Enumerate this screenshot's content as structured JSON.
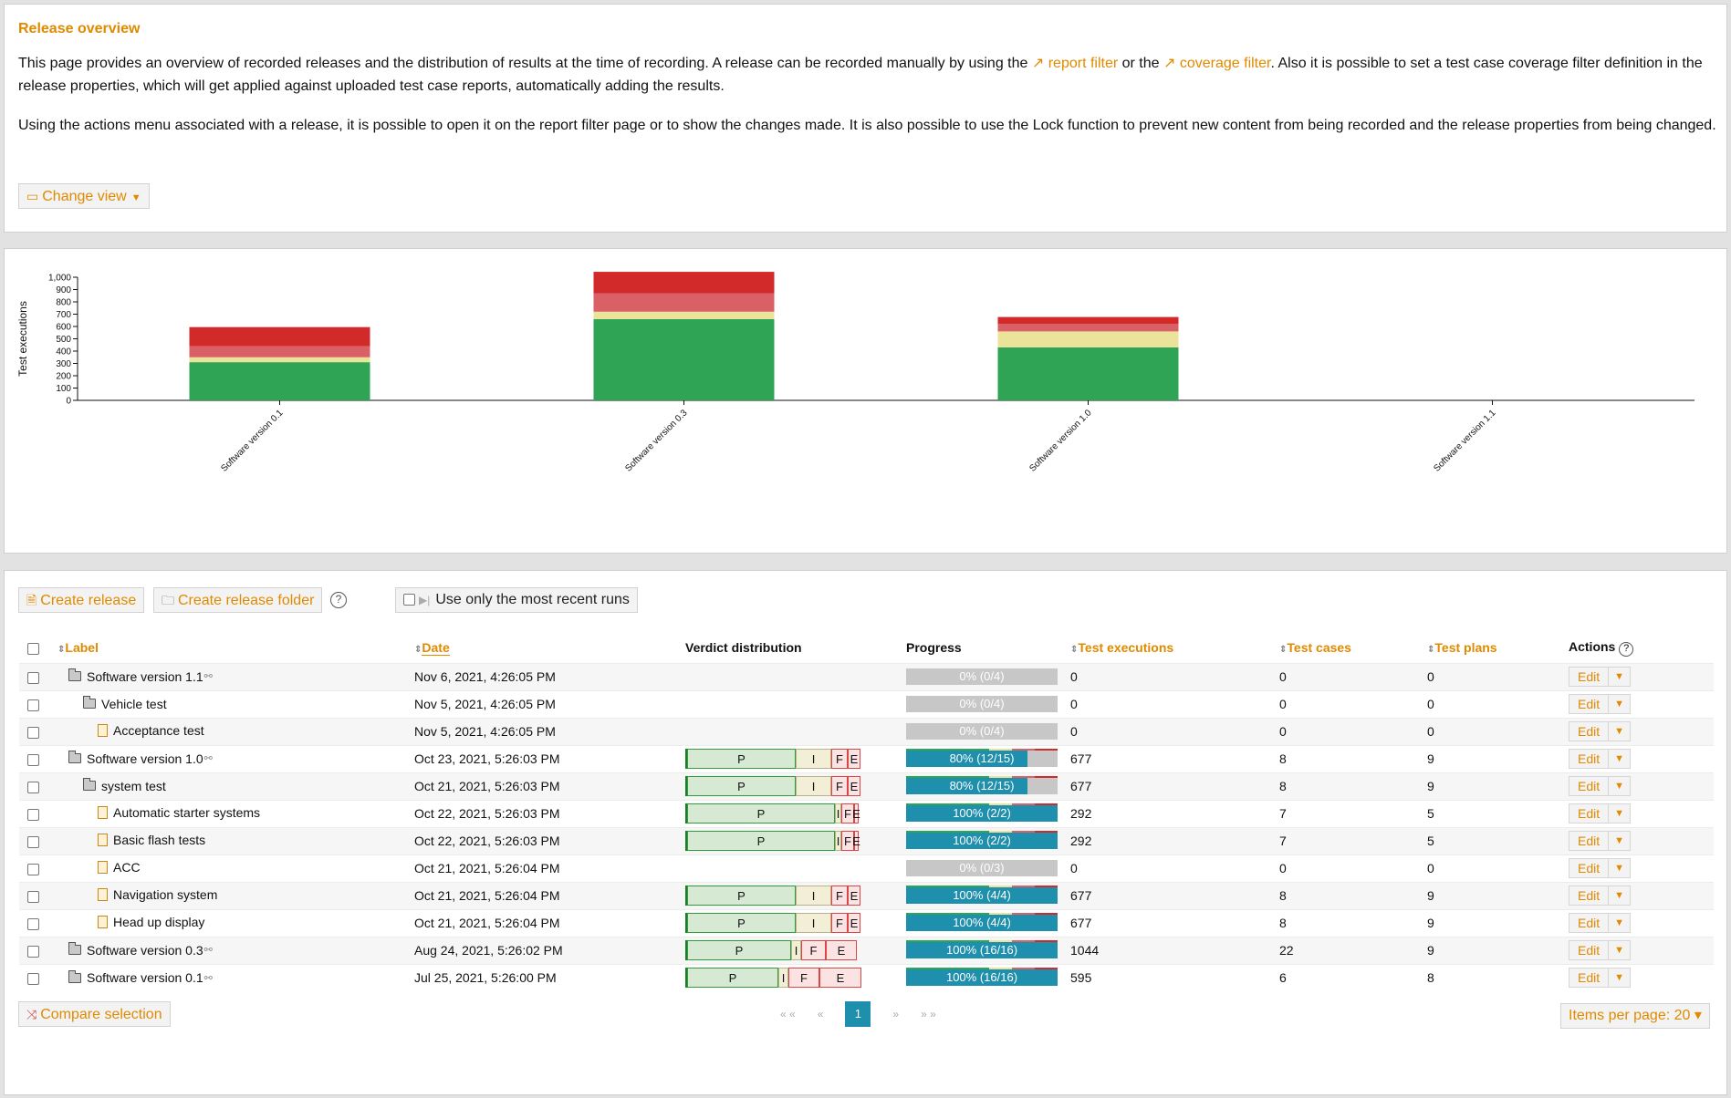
{
  "header": {
    "title": "Release overview",
    "para1_a": "This page provides an overview of recorded releases and the distribution of results at the time of recording. A release can be recorded manually by using the ",
    "para1_link1": "↗ report filter",
    "para1_b": " or the ",
    "para1_link2": "↗ coverage filter",
    "para1_c": ". Also it is possible to set a test case coverage filter definition in the release properties, which will get applied against uploaded test case reports, automatically adding the results.",
    "para2": "Using the actions menu associated with a release, it is possible to open it on the report filter page or to show the changes made. It is also possible to use the Lock function to prevent new content from being recorded and the release properties from being changed.",
    "change_view": "Change view"
  },
  "chart_data": {
    "type": "bar",
    "stacked": true,
    "ylabel": "Test executions",
    "ylim": [
      0,
      1000
    ],
    "yticks": [
      "0",
      "100",
      "200",
      "300",
      "400",
      "500",
      "600",
      "700",
      "800",
      "900",
      "1,000"
    ],
    "categories": [
      "Software version 0.1",
      "Software version 0.3",
      "Software version 1.0",
      "Software version 1.1"
    ],
    "series": [
      {
        "values": [
          310,
          660,
          430,
          0
        ],
        "color": "#2ea454"
      },
      {
        "values": [
          40,
          60,
          130,
          0
        ],
        "color": "#ece39a"
      },
      {
        "values": [
          90,
          150,
          60,
          0
        ],
        "color": "#d96067"
      },
      {
        "values": [
          155,
          174,
          57,
          0
        ],
        "color": "#d22a2a"
      }
    ]
  },
  "toolbar": {
    "create_release": "Create release",
    "create_folder": "Create release folder",
    "recent_runs": "Use only the most recent runs"
  },
  "table": {
    "headers": {
      "label": "Label",
      "date": "Date",
      "verdict": "Verdict distribution",
      "progress": "Progress",
      "executions": "Test executions",
      "cases": "Test cases",
      "plans": "Test plans",
      "actions": "Actions"
    },
    "edit_label": "Edit",
    "rows": [
      {
        "label": "Software version 1.1",
        "icon": "folder",
        "indent": 0,
        "linked": true,
        "date": "Nov 6, 2021, 4:26:05 PM",
        "verdict": [],
        "progress": "0% (0/4)",
        "pct": 0,
        "executions": "0",
        "cases": "0",
        "plans": "0"
      },
      {
        "label": "Vehicle test",
        "icon": "folder",
        "indent": 1,
        "linked": false,
        "date": "Nov 5, 2021, 4:26:05 PM",
        "verdict": [],
        "progress": "0% (0/4)",
        "pct": 0,
        "executions": "0",
        "cases": "0",
        "plans": "0"
      },
      {
        "label": "Acceptance test",
        "icon": "file",
        "indent": 2,
        "linked": false,
        "date": "Nov 5, 2021, 4:26:05 PM",
        "verdict": [],
        "progress": "0% (0/4)",
        "pct": 0,
        "executions": "0",
        "cases": "0",
        "plans": "0"
      },
      {
        "label": "Software version 1.0",
        "icon": "folder",
        "indent": 0,
        "linked": true,
        "date": "Oct 23, 2021, 5:26:03 PM",
        "verdict": [
          [
            "P",
            0.52
          ],
          [
            "I",
            0.17
          ],
          [
            "F",
            0.08
          ],
          [
            "E",
            0.06
          ]
        ],
        "progress": "80% (12/15)",
        "pct": 0.8,
        "executions": "677",
        "cases": "8",
        "plans": "9"
      },
      {
        "label": "system test",
        "icon": "folder",
        "indent": 1,
        "linked": false,
        "date": "Oct 21, 2021, 5:26:03 PM",
        "verdict": [
          [
            "P",
            0.52
          ],
          [
            "I",
            0.17
          ],
          [
            "F",
            0.08
          ],
          [
            "E",
            0.06
          ]
        ],
        "progress": "80% (12/15)",
        "pct": 0.8,
        "executions": "677",
        "cases": "8",
        "plans": "9"
      },
      {
        "label": "Automatic starter systems",
        "icon": "file",
        "indent": 2,
        "linked": false,
        "date": "Oct 22, 2021, 5:26:03 PM",
        "verdict": [
          [
            "P",
            0.71
          ],
          [
            "I",
            0.03
          ],
          [
            "F",
            0.06
          ],
          [
            "E",
            0.02
          ]
        ],
        "progress": "100% (2/2)",
        "pct": 1,
        "executions": "292",
        "cases": "7",
        "plans": "5"
      },
      {
        "label": "Basic flash tests",
        "icon": "file",
        "indent": 2,
        "linked": false,
        "date": "Oct 22, 2021, 5:26:03 PM",
        "verdict": [
          [
            "P",
            0.71
          ],
          [
            "I",
            0.03
          ],
          [
            "F",
            0.06
          ],
          [
            "E",
            0.02
          ]
        ],
        "progress": "100% (2/2)",
        "pct": 1,
        "executions": "292",
        "cases": "7",
        "plans": "5"
      },
      {
        "label": "ACC",
        "icon": "file",
        "indent": 2,
        "linked": false,
        "date": "Oct 21, 2021, 5:26:04 PM",
        "verdict": [],
        "progress": "0% (0/3)",
        "pct": 0,
        "executions": "0",
        "cases": "0",
        "plans": "0"
      },
      {
        "label": "Navigation system",
        "icon": "file",
        "indent": 2,
        "linked": false,
        "date": "Oct 21, 2021, 5:26:04 PM",
        "verdict": [
          [
            "P",
            0.52
          ],
          [
            "I",
            0.17
          ],
          [
            "F",
            0.08
          ],
          [
            "E",
            0.06
          ]
        ],
        "progress": "100% (4/4)",
        "pct": 1,
        "executions": "677",
        "cases": "8",
        "plans": "9"
      },
      {
        "label": "Head up display",
        "icon": "file",
        "indent": 2,
        "linked": false,
        "date": "Oct 21, 2021, 5:26:04 PM",
        "verdict": [
          [
            "P",
            0.52
          ],
          [
            "I",
            0.17
          ],
          [
            "F",
            0.08
          ],
          [
            "E",
            0.06
          ]
        ],
        "progress": "100% (4/4)",
        "pct": 1,
        "executions": "677",
        "cases": "8",
        "plans": "9"
      },
      {
        "label": "Software version 0.3",
        "icon": "folder",
        "indent": 0,
        "linked": true,
        "date": "Aug 24, 2021, 5:26:02 PM",
        "verdict": [
          [
            "P",
            0.5
          ],
          [
            "I",
            0.05
          ],
          [
            "F",
            0.12
          ],
          [
            "E",
            0.15
          ]
        ],
        "progress": "100% (16/16)",
        "pct": 1,
        "executions": "1044",
        "cases": "22",
        "plans": "9"
      },
      {
        "label": "Software version 0.1",
        "icon": "folder",
        "indent": 0,
        "linked": true,
        "date": "Jul 25, 2021, 5:26:00 PM",
        "verdict": [
          [
            "P",
            0.44
          ],
          [
            "I",
            0.05
          ],
          [
            "F",
            0.15
          ],
          [
            "E",
            0.2
          ]
        ],
        "progress": "100% (16/16)",
        "pct": 1,
        "executions": "595",
        "cases": "6",
        "plans": "8"
      }
    ]
  },
  "footer": {
    "compare": "Compare selection",
    "pager_first": "« «",
    "pager_prev": "«",
    "pager_current": "1",
    "pager_next": "»",
    "pager_last": "» »",
    "items_per_page": "Items per page: 20 ▾"
  }
}
